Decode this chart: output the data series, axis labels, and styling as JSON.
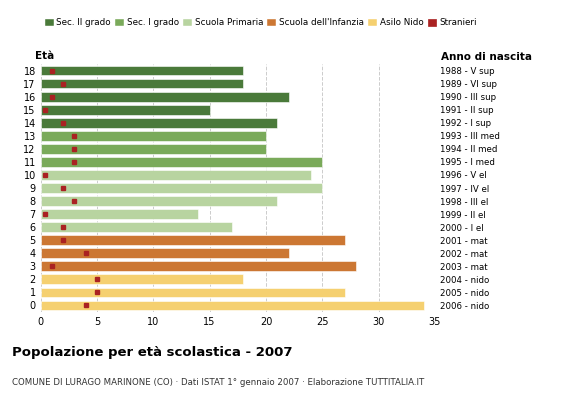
{
  "ages": [
    0,
    1,
    2,
    3,
    4,
    5,
    6,
    7,
    8,
    9,
    10,
    11,
    12,
    13,
    14,
    15,
    16,
    17,
    18
  ],
  "years": [
    "2006 - nido",
    "2005 - nido",
    "2004 - nido",
    "2003 - mat",
    "2002 - mat",
    "2001 - mat",
    "2000 - I el",
    "1999 - II el",
    "1998 - III el",
    "1997 - IV el",
    "1996 - V el",
    "1995 - I med",
    "1994 - II med",
    "1993 - III med",
    "1992 - I sup",
    "1991 - II sup",
    "1990 - III sup",
    "1989 - VI sup",
    "1988 - V sup"
  ],
  "values": [
    34,
    27,
    18,
    28,
    22,
    27,
    17,
    14,
    21,
    25,
    24,
    25,
    20,
    20,
    21,
    15,
    22,
    18,
    18
  ],
  "stranieri": [
    4,
    5,
    5,
    1,
    4,
    2,
    2,
    0.4,
    3,
    2,
    0.4,
    3,
    3,
    3,
    2,
    0.4,
    1,
    2,
    1
  ],
  "bar_colors": [
    "#f5d070",
    "#f5d070",
    "#f5d070",
    "#cc7733",
    "#cc7733",
    "#cc7733",
    "#b8d4a0",
    "#b8d4a0",
    "#b8d4a0",
    "#b8d4a0",
    "#b8d4a0",
    "#7aaa5a",
    "#7aaa5a",
    "#7aaa5a",
    "#4a7a3a",
    "#4a7a3a",
    "#4a7a3a",
    "#4a7a3a",
    "#4a7a3a"
  ],
  "legend_labels": [
    "Sec. II grado",
    "Sec. I grado",
    "Scuola Primaria",
    "Scuola dell'Infanzia",
    "Asilo Nido",
    "Stranieri"
  ],
  "legend_colors": [
    "#4a7a3a",
    "#7aaa5a",
    "#b8d4a0",
    "#cc7733",
    "#f5d070",
    "#aa2222"
  ],
  "title": "Popolazione per età scolastica - 2007",
  "subtitle": "COMUNE DI LURAGO MARINONE (CO) · Dati ISTAT 1° gennaio 2007 · Elaborazione TUTTITALIA.IT",
  "xlabel_eta": "Età",
  "xlabel_anno": "Anno di nascita",
  "xlim": [
    0,
    35
  ],
  "xticks": [
    0,
    5,
    10,
    15,
    20,
    25,
    30,
    35
  ],
  "bg_color": "#ffffff",
  "grid_color": "#cccccc",
  "bar_height": 0.75
}
